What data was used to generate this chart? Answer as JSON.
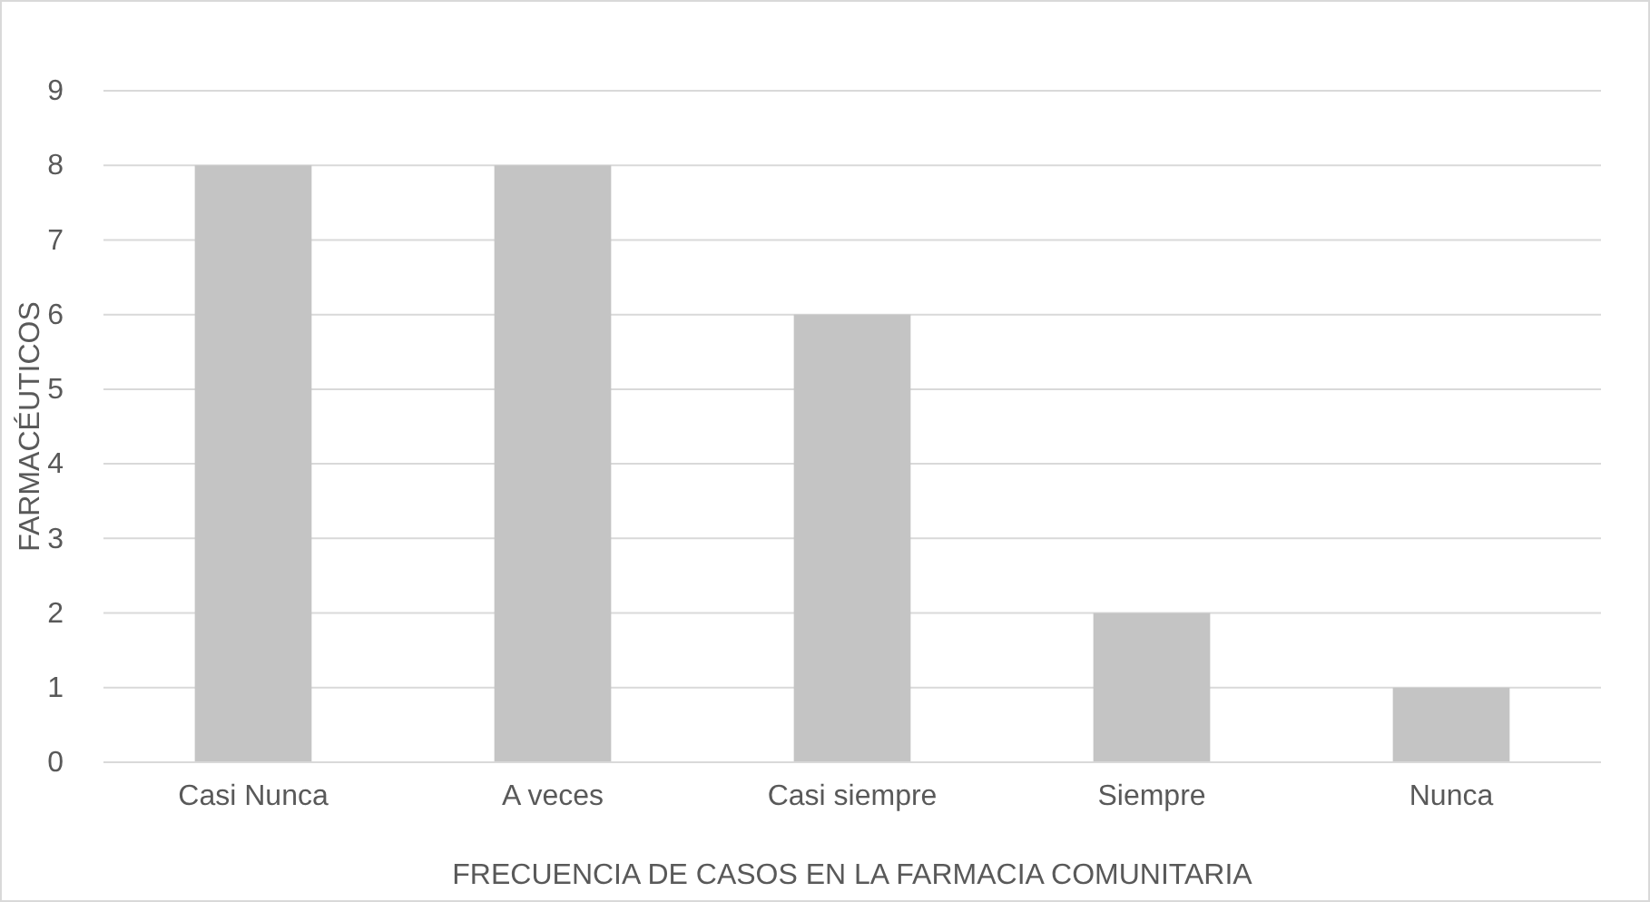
{
  "chart_data": {
    "type": "bar",
    "xlabel": "FRECUENCIA DE CASOS EN LA FARMACIA COMUNITARIA",
    "ylabel": "FARMACÉUTICOS",
    "categories": [
      "Casi Nunca",
      "A veces",
      "Casi siempre",
      "Siempre",
      "Nunca"
    ],
    "values": [
      8,
      8,
      6,
      2,
      1
    ],
    "color": "#c4c4c4",
    "ylim": [
      0,
      9
    ],
    "yticks": [
      0,
      1,
      2,
      3,
      4,
      5,
      6,
      7,
      8,
      9
    ],
    "grid": "y"
  }
}
